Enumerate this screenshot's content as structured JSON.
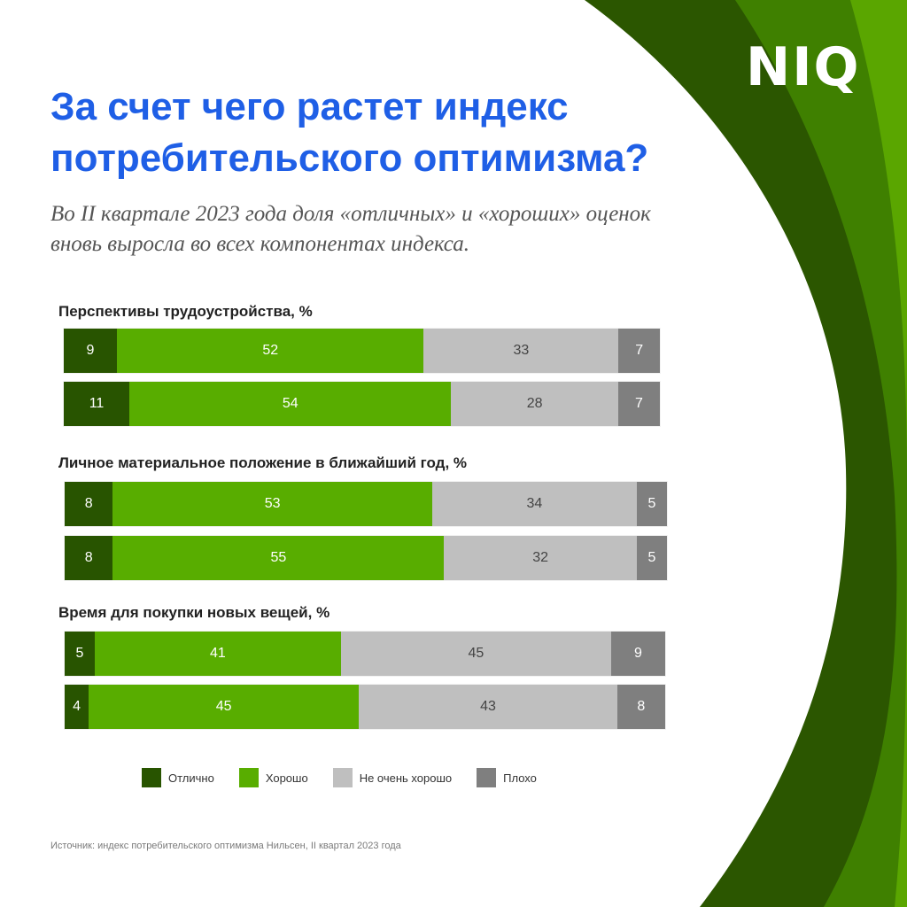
{
  "logo": "NIQ",
  "title": "За счет чего растет индекс потребительского оптимизма?",
  "subtitle": "Во II квартале 2023 года доля «отличных» и «хороших» оценок вновь выросла во всех компонентах индекса.",
  "source": "Источник: индекс потребительского оптимизма Нильсен, II квартал 2023 года",
  "colors": {
    "excellent": "#285400",
    "good": "#58ad00",
    "not_very_good": "#bfbfbf",
    "bad": "#7f7f7f",
    "title": "#1f5fe6",
    "bg_dark": "#2b5600",
    "bg_mid": "#3f8000",
    "bg_light": "#5aa600"
  },
  "chart_data": {
    "type": "stacked-bar",
    "legend": [
      "Отлично",
      "Хорошо",
      "Не очень хорошо",
      "Плохо"
    ],
    "groups": [
      {
        "title": "Перспективы трудоустройства, %",
        "bars": [
          {
            "values": [
              9,
              52,
              33,
              7
            ]
          },
          {
            "values": [
              11,
              54,
              28,
              7
            ]
          }
        ]
      },
      {
        "title": "Личное материальное положение в ближайший год, %",
        "bars": [
          {
            "values": [
              8,
              53,
              34,
              5
            ]
          },
          {
            "values": [
              8,
              55,
              32,
              5
            ]
          }
        ]
      },
      {
        "title": "Время для покупки новых вещей, %",
        "bars": [
          {
            "values": [
              5,
              41,
              45,
              9
            ]
          },
          {
            "values": [
              4,
              45,
              43,
              8
            ]
          }
        ]
      }
    ]
  }
}
